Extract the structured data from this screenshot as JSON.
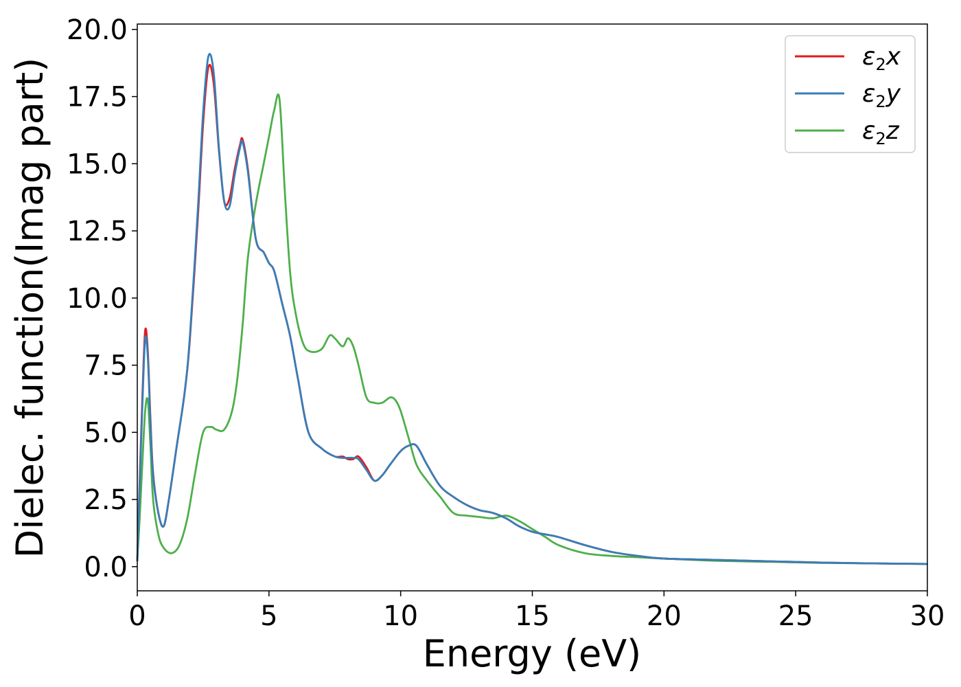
{
  "chart_data": {
    "type": "line",
    "xlabel": "Energy (eV)",
    "ylabel": "Dielec. function(Imag part)",
    "xlim": [
      0,
      30
    ],
    "ylim": [
      -0.9,
      20.2
    ],
    "xticks": [
      0,
      5,
      10,
      15,
      20,
      25,
      30
    ],
    "yticks": [
      0.0,
      2.5,
      5.0,
      7.5,
      10.0,
      12.5,
      15.0,
      17.5,
      20.0
    ],
    "xtick_labels": [
      "0",
      "5",
      "10",
      "15",
      "20",
      "25",
      "30"
    ],
    "ytick_labels": [
      "0.0",
      "2.5",
      "5.0",
      "7.5",
      "10.0",
      "12.5",
      "15.0",
      "17.5",
      "20.0"
    ],
    "grid": false,
    "legend": "top-right",
    "series": [
      {
        "name": "ε2x",
        "legend_base": "ε",
        "legend_sub": "2",
        "legend_tail": "x",
        "color": "#e41a1c",
        "x": [
          0,
          0.1,
          0.2,
          0.3,
          0.4,
          0.5,
          0.6,
          0.8,
          1.0,
          1.2,
          1.5,
          1.8,
          2.0,
          2.3,
          2.5,
          2.7,
          2.9,
          3.1,
          3.3,
          3.5,
          3.7,
          3.9,
          4.0,
          4.2,
          4.5,
          4.8,
          5.0,
          5.2,
          5.5,
          5.8,
          6.1,
          6.5,
          7.0,
          7.5,
          7.8,
          8.0,
          8.2,
          8.4,
          8.7,
          9.0,
          9.3,
          9.6,
          10.0,
          10.3,
          10.6,
          11.0,
          11.5,
          12.0,
          12.5,
          13.0,
          13.5,
          14.0,
          14.5,
          15.0,
          15.5,
          16.0,
          17.0,
          18.0,
          19.0,
          20.0,
          22.0,
          24.0,
          26.0,
          28.0,
          30.0
        ],
        "y": [
          0.2,
          3.5,
          6.5,
          8.8,
          8.0,
          5.5,
          3.5,
          2.0,
          1.5,
          2.5,
          4.5,
          6.5,
          8.5,
          13.0,
          16.5,
          18.6,
          18.0,
          15.5,
          13.6,
          13.7,
          14.8,
          15.7,
          15.9,
          14.8,
          12.2,
          11.7,
          11.3,
          11.0,
          9.8,
          8.6,
          7.0,
          5.0,
          4.4,
          4.1,
          4.1,
          4.0,
          4.0,
          4.1,
          3.7,
          3.2,
          3.4,
          3.8,
          4.3,
          4.5,
          4.5,
          3.8,
          3.0,
          2.6,
          2.3,
          2.1,
          2.0,
          1.8,
          1.5,
          1.3,
          1.2,
          1.1,
          0.8,
          0.55,
          0.4,
          0.3,
          0.25,
          0.2,
          0.15,
          0.12,
          0.1
        ]
      },
      {
        "name": "ε2y",
        "legend_base": "ε",
        "legend_sub": "2",
        "legend_tail": "y",
        "color": "#377eb8",
        "x": [
          0,
          0.1,
          0.2,
          0.3,
          0.4,
          0.5,
          0.6,
          0.8,
          1.0,
          1.2,
          1.5,
          1.8,
          2.0,
          2.3,
          2.5,
          2.7,
          2.9,
          3.1,
          3.3,
          3.5,
          3.7,
          3.9,
          4.0,
          4.2,
          4.5,
          4.8,
          5.0,
          5.2,
          5.5,
          5.8,
          6.1,
          6.5,
          7.0,
          7.5,
          7.8,
          8.0,
          8.2,
          8.4,
          8.7,
          9.0,
          9.3,
          9.6,
          10.0,
          10.3,
          10.6,
          11.0,
          11.5,
          12.0,
          12.5,
          13.0,
          13.5,
          14.0,
          14.5,
          15.0,
          15.5,
          16.0,
          17.0,
          18.0,
          19.0,
          20.0,
          22.0,
          24.0,
          26.0,
          28.0,
          30.0
        ],
        "y": [
          0.2,
          3.3,
          6.2,
          8.5,
          7.8,
          5.3,
          3.4,
          2.0,
          1.5,
          2.5,
          4.5,
          6.5,
          8.6,
          13.3,
          16.9,
          19.0,
          18.4,
          15.6,
          13.6,
          13.4,
          14.6,
          15.6,
          15.8,
          14.7,
          12.2,
          11.7,
          11.3,
          11.0,
          9.8,
          8.6,
          7.0,
          5.0,
          4.4,
          4.1,
          4.05,
          4.05,
          4.05,
          4.0,
          3.6,
          3.2,
          3.4,
          3.8,
          4.3,
          4.5,
          4.5,
          3.8,
          3.0,
          2.6,
          2.3,
          2.1,
          2.0,
          1.8,
          1.5,
          1.3,
          1.2,
          1.1,
          0.8,
          0.55,
          0.4,
          0.3,
          0.25,
          0.2,
          0.15,
          0.12,
          0.1
        ]
      },
      {
        "name": "ε2z",
        "legend_base": "ε",
        "legend_sub": "2",
        "legend_tail": "z",
        "color": "#4daf4a",
        "x": [
          0,
          0.1,
          0.2,
          0.3,
          0.4,
          0.5,
          0.6,
          0.8,
          1.0,
          1.3,
          1.6,
          1.9,
          2.2,
          2.5,
          2.8,
          3.0,
          3.3,
          3.6,
          3.8,
          4.0,
          4.2,
          4.5,
          4.8,
          5.0,
          5.2,
          5.4,
          5.6,
          5.8,
          6.0,
          6.3,
          6.6,
          7.0,
          7.3,
          7.5,
          7.8,
          8.0,
          8.2,
          8.4,
          8.7,
          9.0,
          9.3,
          9.6,
          9.8,
          10.0,
          10.3,
          10.6,
          11.0,
          11.5,
          12.0,
          12.5,
          13.0,
          13.5,
          14.0,
          14.5,
          15.0,
          15.5,
          16.0,
          17.0,
          18.0,
          19.0,
          20.0,
          22.0,
          24.0,
          26.0,
          28.0,
          30.0
        ],
        "y": [
          0.2,
          2.0,
          4.0,
          5.8,
          6.2,
          4.5,
          2.5,
          1.2,
          0.7,
          0.5,
          0.8,
          1.8,
          3.5,
          5.0,
          5.2,
          5.1,
          5.1,
          5.8,
          7.0,
          9.0,
          11.5,
          13.5,
          15.0,
          16.0,
          17.0,
          17.4,
          14.0,
          11.0,
          9.5,
          8.3,
          8.0,
          8.1,
          8.6,
          8.5,
          8.2,
          8.5,
          8.2,
          7.5,
          6.3,
          6.1,
          6.1,
          6.3,
          6.2,
          5.8,
          4.8,
          3.8,
          3.2,
          2.6,
          2.0,
          1.9,
          1.85,
          1.8,
          1.9,
          1.7,
          1.4,
          1.1,
          0.8,
          0.5,
          0.4,
          0.35,
          0.3,
          0.22,
          0.18,
          0.14,
          0.12,
          0.1
        ]
      }
    ]
  }
}
